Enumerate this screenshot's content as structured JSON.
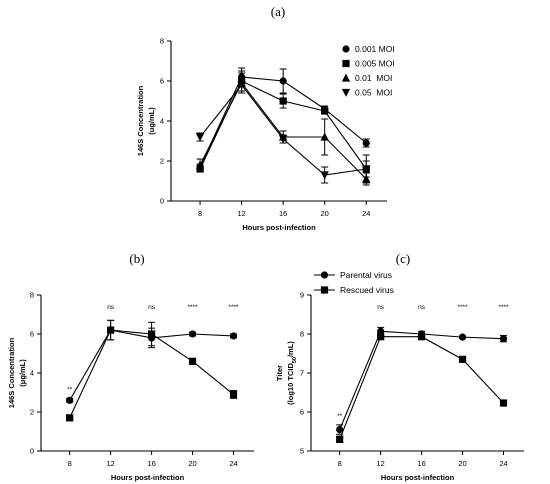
{
  "chart_data": [
    {
      "panel_label": "(a)",
      "type": "line",
      "x": [
        8,
        12,
        16,
        20,
        24
      ],
      "xlabel": "Hours post-infection",
      "ylabel_lines": [
        "146S Concentration",
        "(ug/mL)"
      ],
      "ylim": [
        0,
        8
      ],
      "yticks": [
        0,
        2,
        4,
        6,
        8
      ],
      "grid": false,
      "legend": "top-right",
      "series": [
        {
          "name": "0.001 MOI",
          "marker": "circle",
          "values": [
            1.7,
            6.2,
            6.0,
            4.6,
            2.9
          ],
          "err": [
            0.15,
            0.45,
            0.6,
            0.15,
            0.2
          ]
        },
        {
          "name": "0.005 MOI",
          "marker": "square",
          "values": [
            1.6,
            6.0,
            5.0,
            4.5,
            1.6
          ],
          "err": [
            0.1,
            0.5,
            0.35,
            0.15,
            0.4
          ]
        },
        {
          "name": "0.01  MOI",
          "marker": "triangle-up",
          "values": [
            1.8,
            5.9,
            3.2,
            3.2,
            1.1
          ],
          "err": [
            0.3,
            0.5,
            0.3,
            0.9,
            0.3
          ]
        },
        {
          "name": "0.05  MOI",
          "marker": "triangle-down",
          "values": [
            3.2,
            5.8,
            3.1,
            1.3,
            1.6
          ],
          "err": [
            0.2,
            0.4,
            0.2,
            0.4,
            0.7
          ]
        }
      ]
    },
    {
      "panel_label": "(b)",
      "type": "line",
      "x": [
        8,
        12,
        16,
        20,
        24
      ],
      "xlabel": "Hours post-infection",
      "ylabel_lines": [
        "146S Concentration",
        "(μg/mL)"
      ],
      "ylim": [
        0,
        8
      ],
      "yticks": [
        0,
        2,
        4,
        6,
        8
      ],
      "grid": false,
      "annotations": [
        "**",
        "ns",
        "ns",
        "****",
        "****"
      ],
      "series": [
        {
          "name": "Parental virus",
          "marker": "circle",
          "values": [
            2.6,
            6.2,
            5.8,
            6.0,
            5.9
          ],
          "err": [
            0.1,
            0.5,
            0.5,
            0.1,
            0.1
          ]
        },
        {
          "name": "Rescued virus",
          "marker": "square",
          "values": [
            1.7,
            6.2,
            6.0,
            4.6,
            2.9
          ],
          "err": [
            0.1,
            0.5,
            0.6,
            0.1,
            0.2
          ]
        }
      ]
    },
    {
      "panel_label": "(c)",
      "type": "line",
      "x": [
        8,
        12,
        16,
        20,
        24
      ],
      "xlabel": "Hours post-infection",
      "ylabel_lines": [
        "Titer",
        "(log10 TCID50/mL)"
      ],
      "ylim": [
        5,
        9
      ],
      "yticks": [
        5,
        6,
        7,
        8,
        9
      ],
      "grid": false,
      "legend": "top-left",
      "annotations": [
        "**",
        "ns",
        "ns",
        "****",
        "****"
      ],
      "series": [
        {
          "name": "Parental virus",
          "marker": "circle",
          "values": [
            5.55,
            8.07,
            8.0,
            7.92,
            7.88
          ],
          "err": [
            0.12,
            0.1,
            0.07,
            0.03,
            0.08
          ]
        },
        {
          "name": "Rescued virus",
          "marker": "square",
          "values": [
            5.3,
            7.93,
            7.93,
            7.35,
            6.23
          ],
          "err": [
            0.08,
            0.07,
            0.05,
            0.03,
            0.03
          ]
        }
      ]
    }
  ]
}
